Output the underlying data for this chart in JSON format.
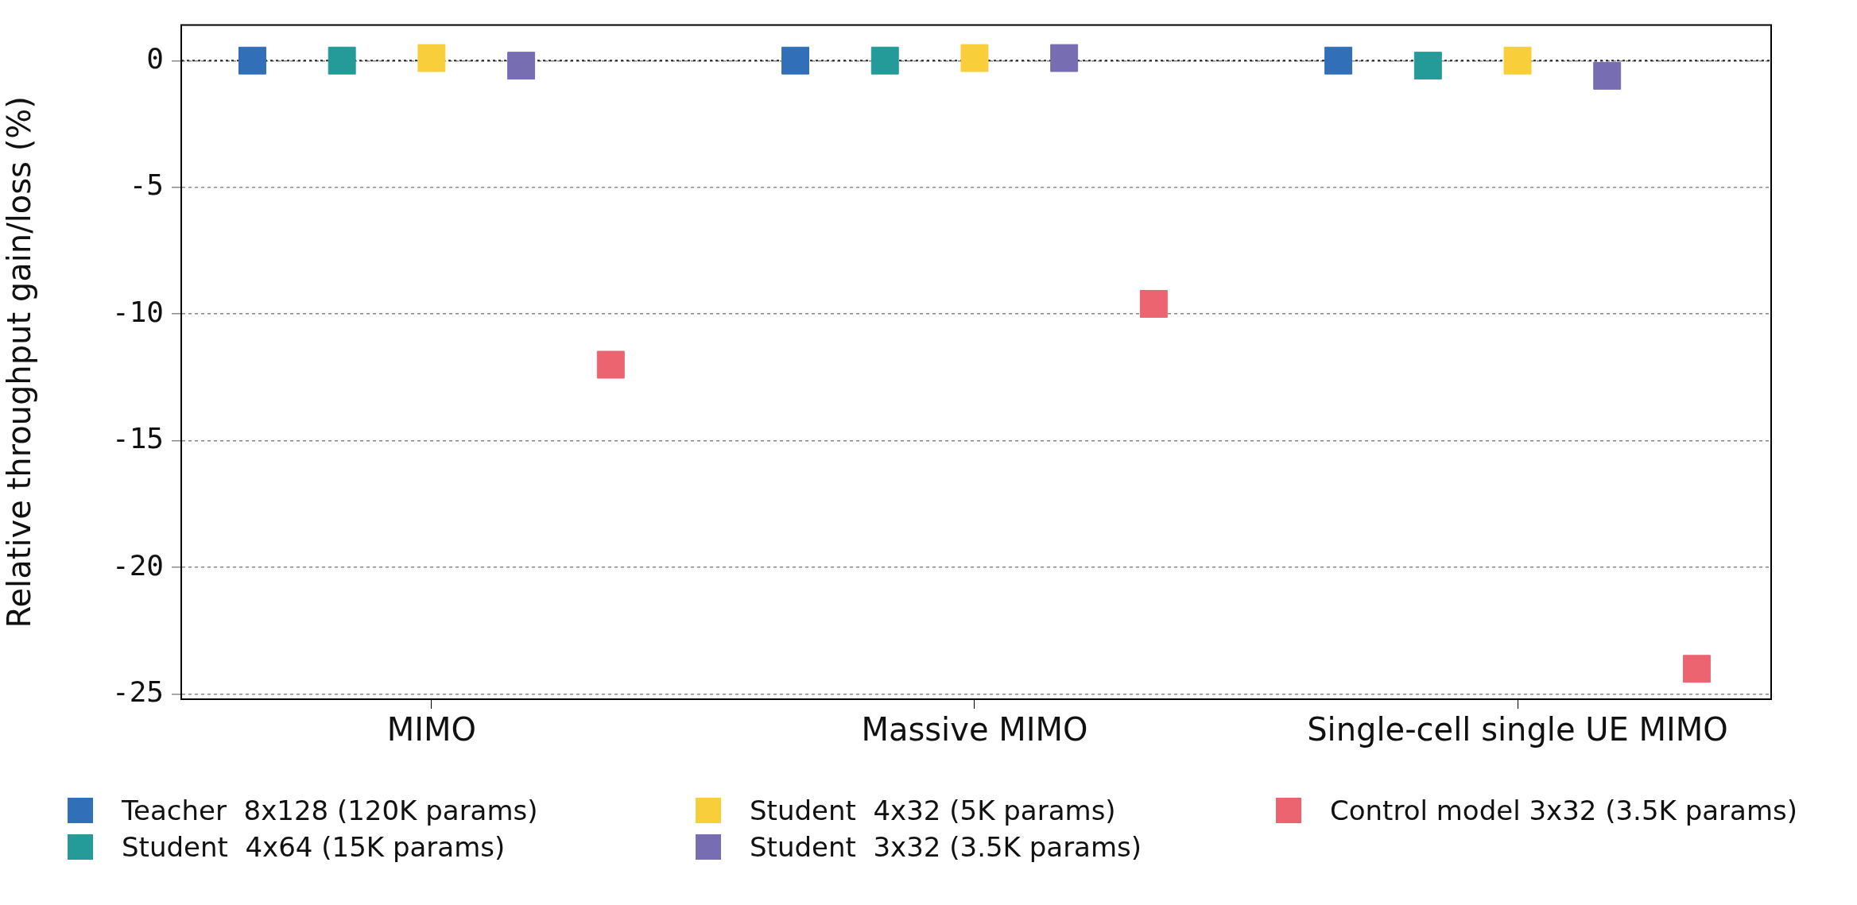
{
  "chart_data": {
    "type": "scatter",
    "ylabel": "Relative throughput gain/loss (%)",
    "categories": [
      "MIMO",
      "Massive MIMO",
      "Single-cell single UE MIMO"
    ],
    "series": [
      {
        "name": "Teacher  8x128 (120K params)",
        "color": "#3170b9",
        "values": [
          0,
          0,
          0
        ]
      },
      {
        "name": "Student  4x64 (15K params)",
        "color": "#249a99",
        "values": [
          0,
          0,
          -0.2
        ]
      },
      {
        "name": "Student  4x32 (5K params)",
        "color": "#f8cf3b",
        "values": [
          0.1,
          0.1,
          0
        ]
      },
      {
        "name": "Student  3x32 (3.5K params)",
        "color": "#776db2",
        "values": [
          -0.2,
          0.1,
          -0.6
        ]
      },
      {
        "name": "Control model 3x32 (3.5K params)",
        "color": "#eb6470",
        "values": [
          -12,
          -9.6,
          -24
        ]
      }
    ],
    "ylim": [
      -25.2,
      1.4
    ],
    "yticks": [
      0,
      -5,
      -10,
      -15,
      -20,
      -25
    ],
    "ref_lines": [
      {
        "axis": "y",
        "value": 0,
        "color": "#222222",
        "line_style": "dotted"
      }
    ],
    "grid": "y",
    "legend": "bottom",
    "marker": "square"
  }
}
